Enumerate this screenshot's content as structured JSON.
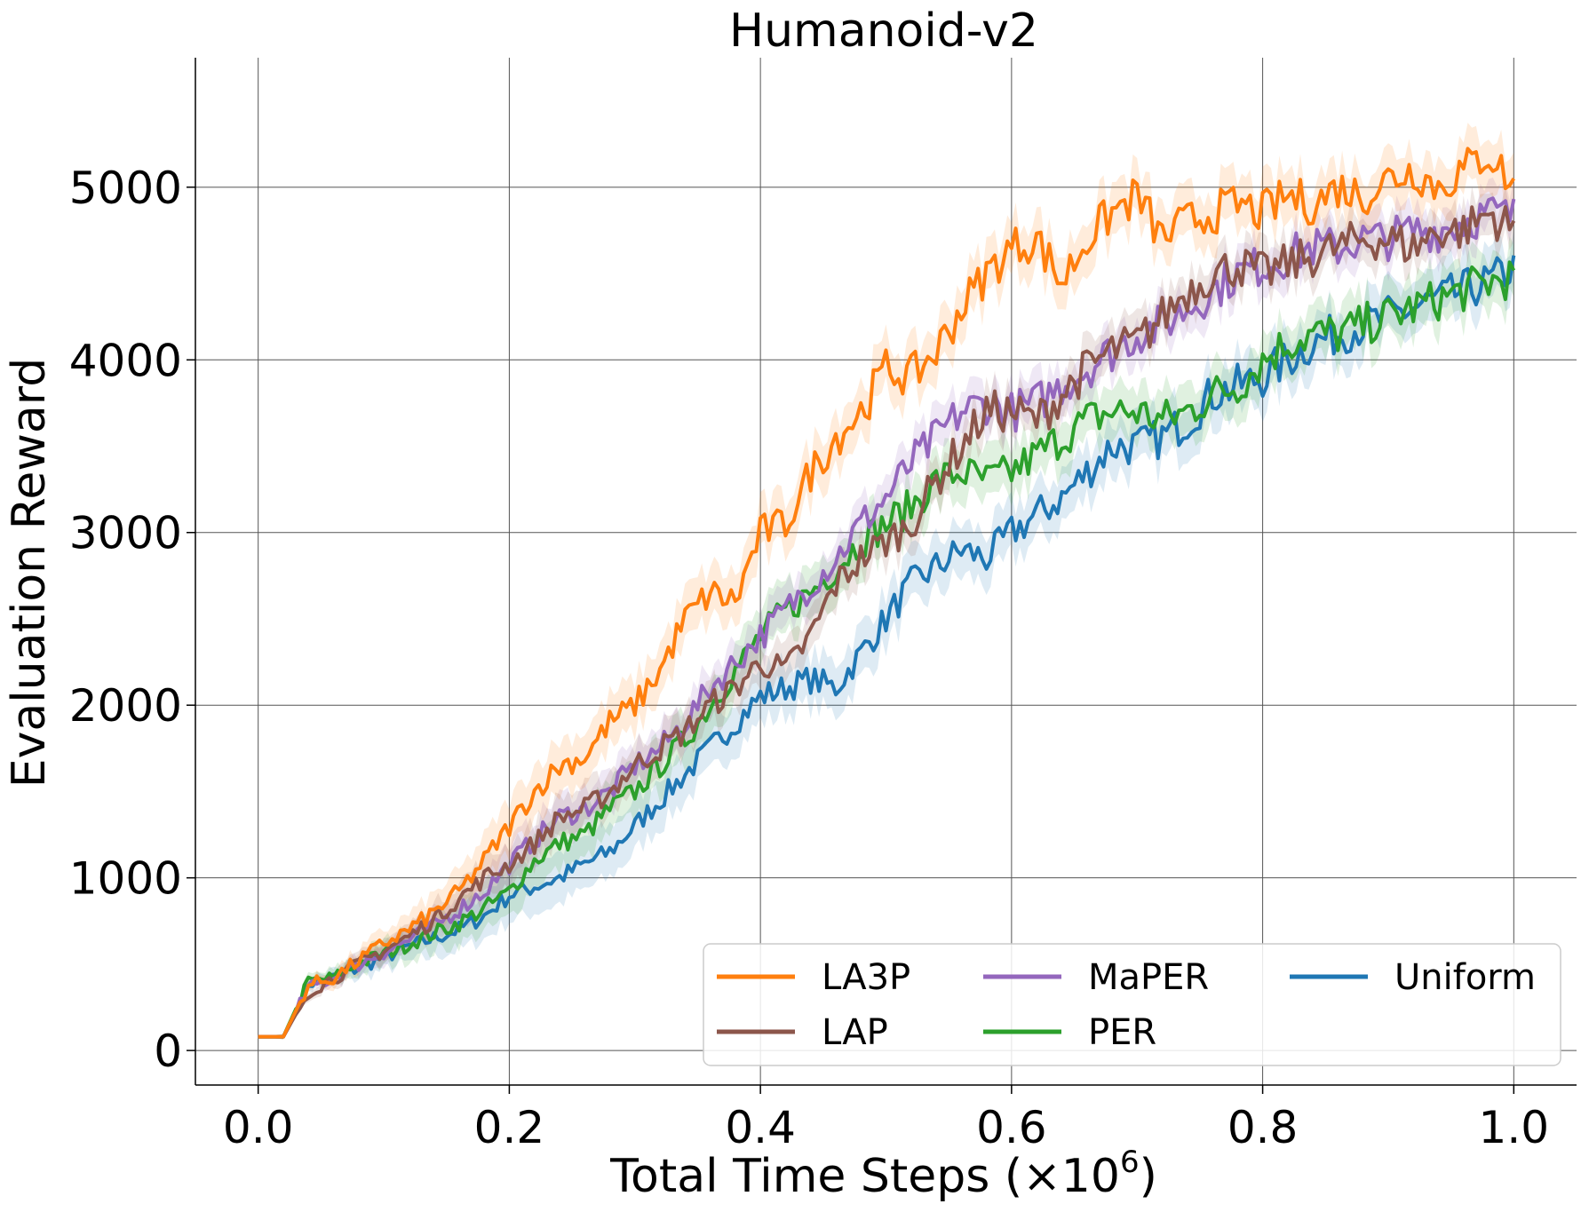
{
  "chart_data": {
    "type": "line",
    "title": "Humanoid-v2",
    "xlabel": "Total Time Steps (×10",
    "xlabel_exponent": "6",
    "xlabel_suffix": ")",
    "ylabel": "Evaluation Reward",
    "xlim": [
      -0.05,
      1.05
    ],
    "ylim": [
      -200,
      5750
    ],
    "xticks": [
      0.0,
      0.2,
      0.4,
      0.6,
      0.8,
      1.0
    ],
    "xtick_labels": [
      "0.0",
      "0.2",
      "0.4",
      "0.6",
      "0.8",
      "1.0"
    ],
    "yticks": [
      0,
      1000,
      2000,
      3000,
      4000,
      5000
    ],
    "ytick_labels": [
      "0",
      "1000",
      "2000",
      "3000",
      "4000",
      "5000"
    ],
    "grid": true,
    "legend_position": "bottom-right",
    "legend_columns": 3,
    "x": [
      0.0,
      0.02,
      0.04,
      0.06,
      0.08,
      0.1,
      0.12,
      0.14,
      0.16,
      0.18,
      0.2,
      0.22,
      0.24,
      0.26,
      0.28,
      0.3,
      0.32,
      0.34,
      0.36,
      0.38,
      0.4,
      0.42,
      0.44,
      0.46,
      0.48,
      0.5,
      0.52,
      0.54,
      0.56,
      0.58,
      0.6,
      0.62,
      0.64,
      0.66,
      0.68,
      0.7,
      0.72,
      0.74,
      0.76,
      0.78,
      0.8,
      0.82,
      0.84,
      0.86,
      0.88,
      0.9,
      0.92,
      0.94,
      0.96,
      0.98,
      1.0
    ],
    "series": [
      {
        "name": "LA3P",
        "color": "#ff7f0e",
        "band": 150,
        "values": [
          80,
          80,
          380,
          420,
          520,
          620,
          700,
          800,
          920,
          1100,
          1300,
          1500,
          1650,
          1700,
          1900,
          2000,
          2200,
          2500,
          2650,
          2600,
          3000,
          3050,
          3350,
          3550,
          3700,
          3950,
          3900,
          4050,
          4300,
          4500,
          4650,
          4700,
          4450,
          4700,
          4850,
          4950,
          4700,
          4800,
          4850,
          4900,
          4850,
          4950,
          4900,
          5000,
          4950,
          5050,
          5100,
          5000,
          5100,
          5200,
          5000
        ]
      },
      {
        "name": "LAP",
        "color": "#8c564b",
        "band": 120,
        "values": [
          80,
          80,
          340,
          420,
          500,
          580,
          660,
          760,
          880,
          1000,
          1080,
          1200,
          1350,
          1400,
          1500,
          1650,
          1750,
          1850,
          2000,
          2100,
          2250,
          2200,
          2400,
          2700,
          2850,
          2950,
          3050,
          3300,
          3500,
          3700,
          3700,
          3650,
          3800,
          3950,
          4050,
          4100,
          4250,
          4400,
          4500,
          4550,
          4500,
          4550,
          4600,
          4650,
          4700,
          4700,
          4650,
          4750,
          4750,
          4850,
          4750
        ]
      },
      {
        "name": "MaPER",
        "color": "#9467bd",
        "band": 120,
        "values": [
          80,
          80,
          360,
          420,
          500,
          570,
          640,
          720,
          820,
          920,
          1080,
          1220,
          1350,
          1400,
          1500,
          1650,
          1750,
          1900,
          2100,
          2250,
          2400,
          2550,
          2700,
          2850,
          3050,
          3200,
          3400,
          3550,
          3700,
          3750,
          3700,
          3750,
          3850,
          3950,
          4050,
          4150,
          4200,
          4300,
          4400,
          4500,
          4550,
          4600,
          4650,
          4650,
          4700,
          4700,
          4750,
          4750,
          4800,
          4850,
          4830
        ]
      },
      {
        "name": "PER",
        "color": "#2ca02c",
        "band": 150,
        "values": [
          80,
          80,
          400,
          420,
          500,
          560,
          620,
          680,
          740,
          820,
          920,
          1100,
          1200,
          1250,
          1400,
          1500,
          1650,
          1800,
          2000,
          2200,
          2400,
          2550,
          2650,
          2800,
          2950,
          3050,
          3150,
          3300,
          3350,
          3300,
          3350,
          3450,
          3550,
          3650,
          3700,
          3700,
          3650,
          3700,
          3800,
          3850,
          4000,
          4100,
          4150,
          4150,
          4200,
          4250,
          4300,
          4350,
          4400,
          4450,
          4480
        ]
      },
      {
        "name": "Uniform",
        "color": "#1f77b4",
        "band": 150,
        "values": [
          80,
          80,
          390,
          420,
          480,
          540,
          600,
          650,
          700,
          780,
          900,
          950,
          1000,
          1080,
          1150,
          1300,
          1450,
          1600,
          1750,
          1900,
          2050,
          2100,
          2150,
          2100,
          2300,
          2500,
          2700,
          2800,
          2900,
          2850,
          3000,
          3100,
          3200,
          3350,
          3500,
          3500,
          3550,
          3650,
          3800,
          3850,
          3900,
          4000,
          4100,
          4150,
          4200,
          4250,
          4300,
          4350,
          4400,
          4450,
          4530
        ]
      }
    ]
  }
}
